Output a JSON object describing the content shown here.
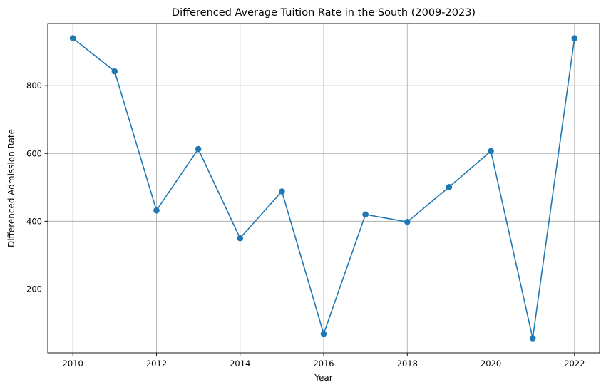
{
  "chart_data": {
    "type": "line",
    "title": "Differenced Average Tuition Rate in the South (2009-2023)",
    "xlabel": "Year",
    "ylabel": "Differenced Admission Rate",
    "x": [
      2010,
      2011,
      2012,
      2013,
      2014,
      2015,
      2016,
      2017,
      2018,
      2019,
      2020,
      2021,
      2022
    ],
    "series": [
      {
        "values": [
          940,
          842,
          432,
          613,
          350,
          488,
          68,
          420,
          398,
          501,
          607,
          55,
          940
        ],
        "color": "#1f77b4",
        "marker": "circle"
      }
    ],
    "xticks": [
      "2010",
      "2012",
      "2014",
      "2016",
      "2018",
      "2020",
      "2022"
    ],
    "yticks": [
      "200",
      "400",
      "600",
      "800"
    ],
    "xlim": [
      2009.4,
      2022.6
    ],
    "ylim": [
      11.75,
      983.25
    ],
    "grid": true
  }
}
